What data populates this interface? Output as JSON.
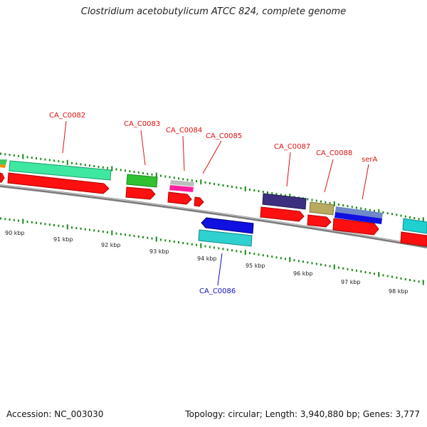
{
  "title": "Clostridium acetobutylicum ATCC 824, complete genome",
  "footer": {
    "accession": "Accession: NC_003030",
    "summary": "Topology: circular; Length: 3,940,880 bp; Genes: 3,777"
  },
  "colors": {
    "top_strand_label": "#e01010",
    "bottom_strand_label": "#1010c0",
    "backbone": "#7a7a7a",
    "ticks": "#1a8a1a",
    "cds": "#ff1010"
  },
  "ruler": {
    "unit": "kbp",
    "labels": [
      "90 kbp",
      "91 kbp",
      "92 kbp",
      "93 kbp",
      "94 kbp",
      "95 kbp",
      "96 kbp",
      "97 kbp",
      "98 kbp"
    ]
  },
  "genes": [
    {
      "id": "CA_C0082",
      "strand": "top"
    },
    {
      "id": "CA_C0083",
      "strand": "top"
    },
    {
      "id": "CA_C0084",
      "strand": "top"
    },
    {
      "id": "CA_C0085",
      "strand": "top"
    },
    {
      "id": "CA_C0086",
      "strand": "bottom"
    },
    {
      "id": "CA_C0087",
      "strand": "top"
    },
    {
      "id": "CA_C0088",
      "strand": "top"
    },
    {
      "id": "serA",
      "strand": "top"
    }
  ]
}
